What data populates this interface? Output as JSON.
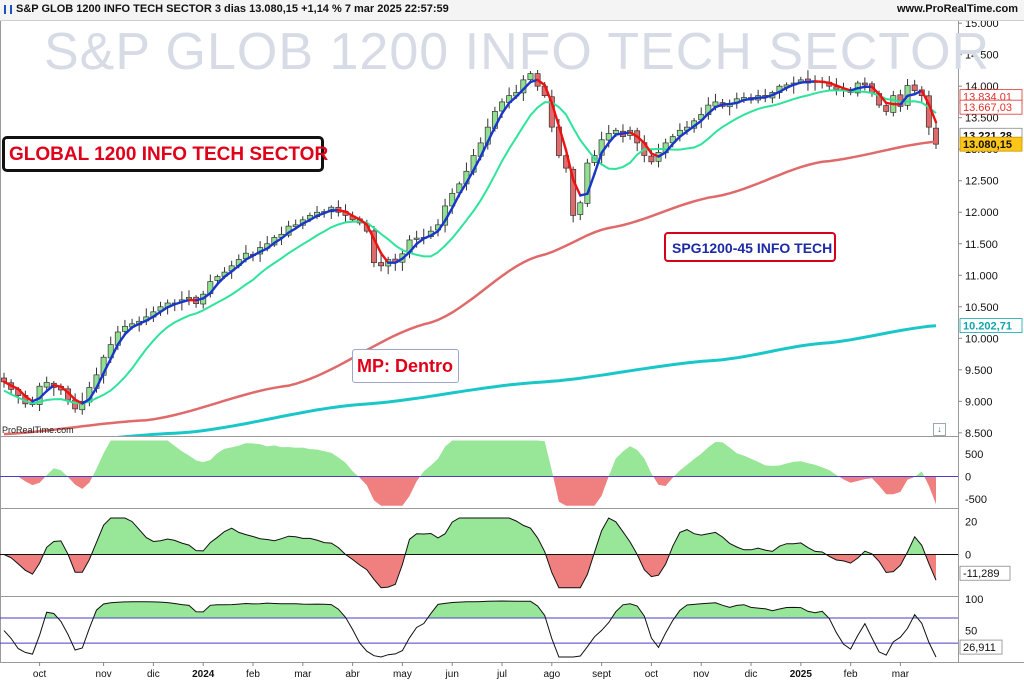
{
  "header": {
    "title": "S&P GLOB 1200 INFO TECH SECTOR 3 dias 13.080,15 +1,14 % 7 mar 2025 22:57:59",
    "site": "www.ProRealTime.com"
  },
  "watermark": "S&P GLOB 1200 INFO TECH SECTOR",
  "annotations": {
    "global": "GLOBAL 1200 INFO TECH SECTOR",
    "spg": "SPG1200-45 INFO TECH",
    "mp": "MP: Dentro"
  },
  "credit": "ProRealTime.com",
  "colors": {
    "bull": "#90e090",
    "bear": "#e06a6a",
    "ma_fast_up": "#1a35c9",
    "ma_fast_down": "#ee1111",
    "ma_mid": "#2ee39a",
    "ma_slow": "#e06a6a",
    "ma_long": "#19c6c8",
    "osc_pos": "#98e698",
    "osc_neg": "#f08080",
    "line_purple": "#4a3fc8"
  },
  "icons": {
    "download": "download-icon",
    "chart": "chart-icon"
  },
  "chart_data": [
    {
      "type": "candlestick",
      "title": "S&P GLOB 1200 INFO TECH SECTOR",
      "x_ticks": [
        "oct",
        "nov",
        "dic",
        "2024",
        "feb",
        "mar",
        "abr",
        "may",
        "jun",
        "jul",
        "ago",
        "sept",
        "oct",
        "nov",
        "dic",
        "2025",
        "feb",
        "mar"
      ],
      "y_ticks": [
        "15.000",
        "14.500",
        "14.000",
        "13.500",
        "13.000",
        "12.500",
        "12.000",
        "11.500",
        "11.000",
        "10.500",
        "10.000",
        "9.500",
        "9.000",
        "8.500"
      ],
      "ylim": [
        8450,
        15050
      ],
      "close_series": [
        9310,
        9190,
        9090,
        8960,
        8950,
        9240,
        9300,
        9220,
        9180,
        9020,
        8880,
        9000,
        9220,
        9420,
        9700,
        9900,
        10100,
        10190,
        10230,
        10270,
        10340,
        10420,
        10500,
        10560,
        10560,
        10610,
        10650,
        10550,
        10700,
        10900,
        10980,
        11050,
        11150,
        11250,
        11350,
        11330,
        11440,
        11500,
        11600,
        11650,
        11780,
        11800,
        11880,
        11950,
        12000,
        12010,
        12080,
        12000,
        11950,
        11880,
        11830,
        11700,
        11200,
        11150,
        11250,
        11200,
        11340,
        11560,
        11590,
        11600,
        11700,
        11800,
        12100,
        12300,
        12450,
        12650,
        12900,
        13100,
        13350,
        13600,
        13750,
        13850,
        13900,
        14100,
        14200,
        14000,
        13850,
        13350,
        12900,
        12700,
        11950,
        12150,
        12780,
        12900,
        13150,
        13250,
        13300,
        13200,
        13300,
        13100,
        12900,
        12800,
        12950,
        13100,
        13200,
        13300,
        13350,
        13450,
        13550,
        13700,
        13750,
        13680,
        13720,
        13800,
        13820,
        13780,
        13850,
        13830,
        13900,
        14000,
        14020,
        14050,
        14100,
        14050,
        14080,
        14080,
        14000,
        13950,
        13950,
        13900,
        14050,
        14020,
        13900,
        13700,
        13600,
        13850,
        13680,
        14010,
        13930,
        13850,
        13350,
        13080
      ],
      "price_tags": [
        "13.834,01",
        "13.667,03",
        "13.221,28",
        "13.080,15",
        "10.202,71"
      ]
    },
    {
      "type": "area",
      "name": "oscillator-1",
      "y_ticks": [
        "500",
        "0",
        "-500"
      ],
      "ylim": [
        -700,
        900
      ]
    },
    {
      "type": "area",
      "name": "oscillator-2",
      "y_ticks": [
        "20",
        "0"
      ],
      "value_tag": "-11,289",
      "ylim": [
        -25,
        28
      ]
    },
    {
      "type": "line",
      "name": "oscillator-3",
      "y_ticks": [
        "100",
        "50"
      ],
      "value_tag": "26,911",
      "ylim": [
        0,
        105
      ],
      "bands": [
        70,
        30
      ]
    }
  ]
}
